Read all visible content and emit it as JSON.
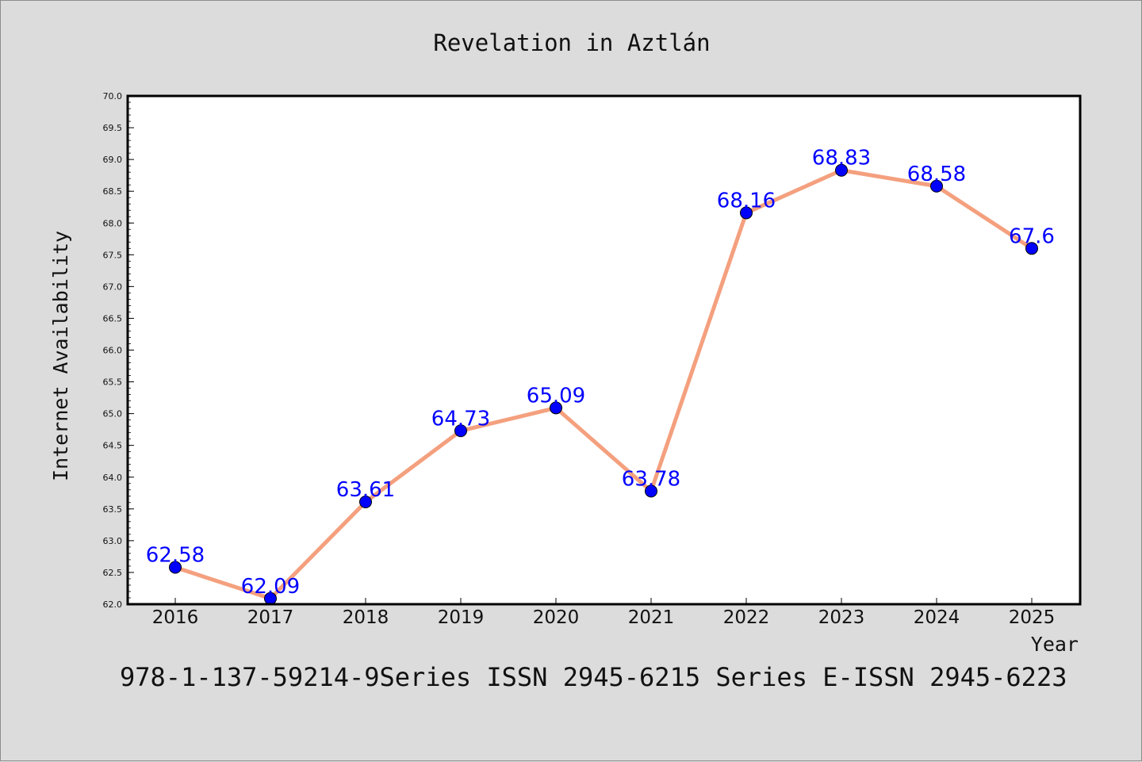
{
  "chart_data": {
    "type": "line",
    "title": "Revelation in Aztlán",
    "xlabel": "Year",
    "ylabel": "Internet Availability",
    "categories": [
      "2016",
      "2017",
      "2018",
      "2019",
      "2020",
      "2021",
      "2022",
      "2023",
      "2024",
      "2025"
    ],
    "series": [
      {
        "values": [
          62.58,
          62.09,
          63.61,
          64.73,
          65.09,
          63.78,
          68.16,
          68.83,
          68.58,
          67.6
        ],
        "labels": [
          "62.58",
          "62.09",
          "63.61",
          "64.73",
          "65.09",
          "63.78",
          "68.16",
          "68.83",
          "68.58",
          "67.6"
        ],
        "line_color": "#f4a07e",
        "marker_color": "#0000ff"
      }
    ],
    "ylim": [
      62.0,
      70.0
    ],
    "yticks": [
      "62.0",
      "62.5",
      "63.0",
      "63.5",
      "64.0",
      "64.5",
      "65.0",
      "65.5",
      "66.0",
      "66.5",
      "67.0",
      "67.5",
      "68.0",
      "68.5",
      "69.0",
      "69.5",
      "70.0"
    ],
    "grid": false,
    "legend": "none"
  },
  "caption": "978-1-137-59214-9Series ISSN 2945-6215 Series E-ISSN 2945-6223",
  "colors": {
    "background": "#dcdcdc",
    "plot_background": "#ffffff",
    "line": "#f4a07e",
    "marker": "#0000ff",
    "data_label": "#0000ff"
  }
}
